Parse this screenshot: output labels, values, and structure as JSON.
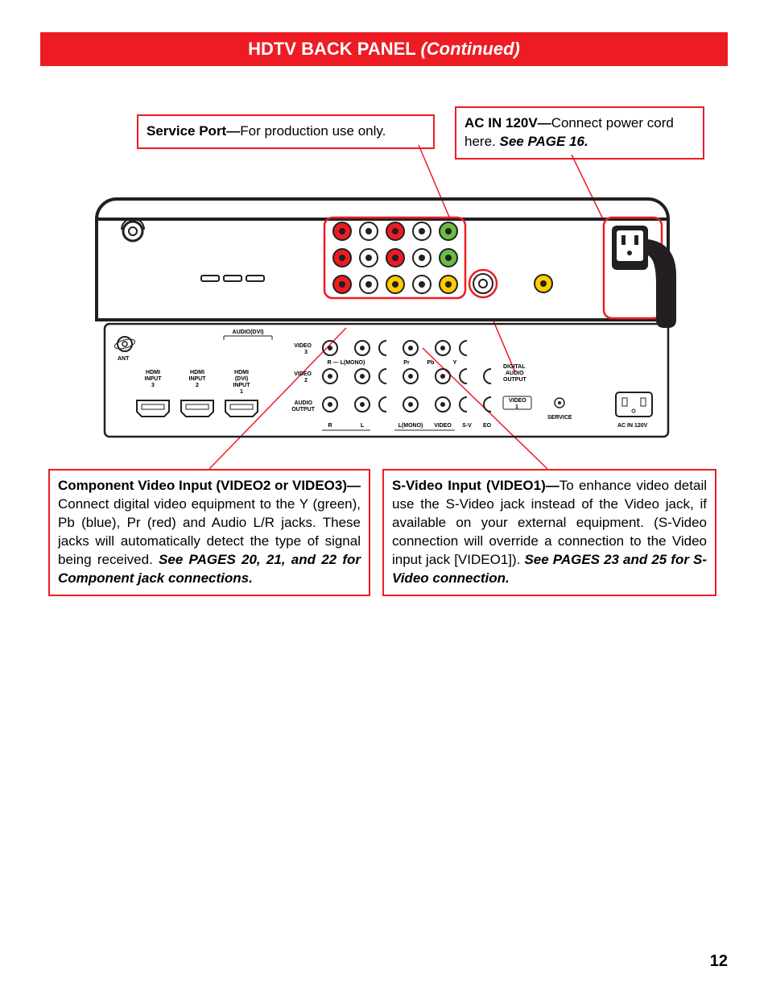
{
  "header": {
    "title_main": "HDTV BACK PANEL ",
    "title_cont": "(Continued)"
  },
  "callouts": {
    "service": {
      "title": "Service Port—",
      "body": "For production use only."
    },
    "acin": {
      "title": "AC IN 120V—",
      "body": "Connect power cord here. ",
      "ref": "See PAGE 16."
    },
    "component": {
      "title": "Component Video Input (VIDEO2 or VIDEO3)—",
      "body": "Connect digital video equipment to the Y (green), Pb (blue), Pr (red) and Audio L/R jacks. These jacks will automatically detect the type of signal being received. ",
      "ref": "See PAGES 20, 21, and 22 for Component jack connections."
    },
    "svideo": {
      "title": "S-Video Input (VIDEO1)—",
      "body": "To enhance video detail use the S-Video jack instead of the Video jack, if available on your external equipment. (S-Video connection will override a connection to the Video input jack [VIDEO1]). ",
      "ref": "See PAGES 23 and 25 for S-Video connection."
    }
  },
  "panel": {
    "labels": {
      "ant": "ANT",
      "hdmi3": "HDMI INPUT 3",
      "hdmi2": "HDMI INPUT 2",
      "hdmi1": "HDMI (DVI) INPUT 1",
      "audio_dvi": "AUDIO(DVI)",
      "video3": "VIDEO 3",
      "video2": "VIDEO 2",
      "audio_out": "AUDIO OUTPUT",
      "r": "R",
      "l": "L",
      "lmono": "L(MONO)",
      "video": "VIDEO",
      "sv": "S-V",
      "eo": "EO",
      "pb": "Pb",
      "y": "Y",
      "pr": "Pr",
      "digital_audio": "DIGITAL AUDIO OUTPUT",
      "video1": "VIDEO 1",
      "service": "SERVICE",
      "acin": "AC IN 120V",
      "rlmono": "R — L(MONO)"
    },
    "colors": {
      "outline": "#231f20",
      "highlight": "#ed1c24",
      "jack_yellow": "#ffcc00",
      "jack_green": "#6abd45",
      "jack_red": "#ed1c24",
      "jack_white": "#ffffff",
      "jack_gray": "#888888",
      "bg": "#ffffff"
    }
  },
  "page_number": "12"
}
